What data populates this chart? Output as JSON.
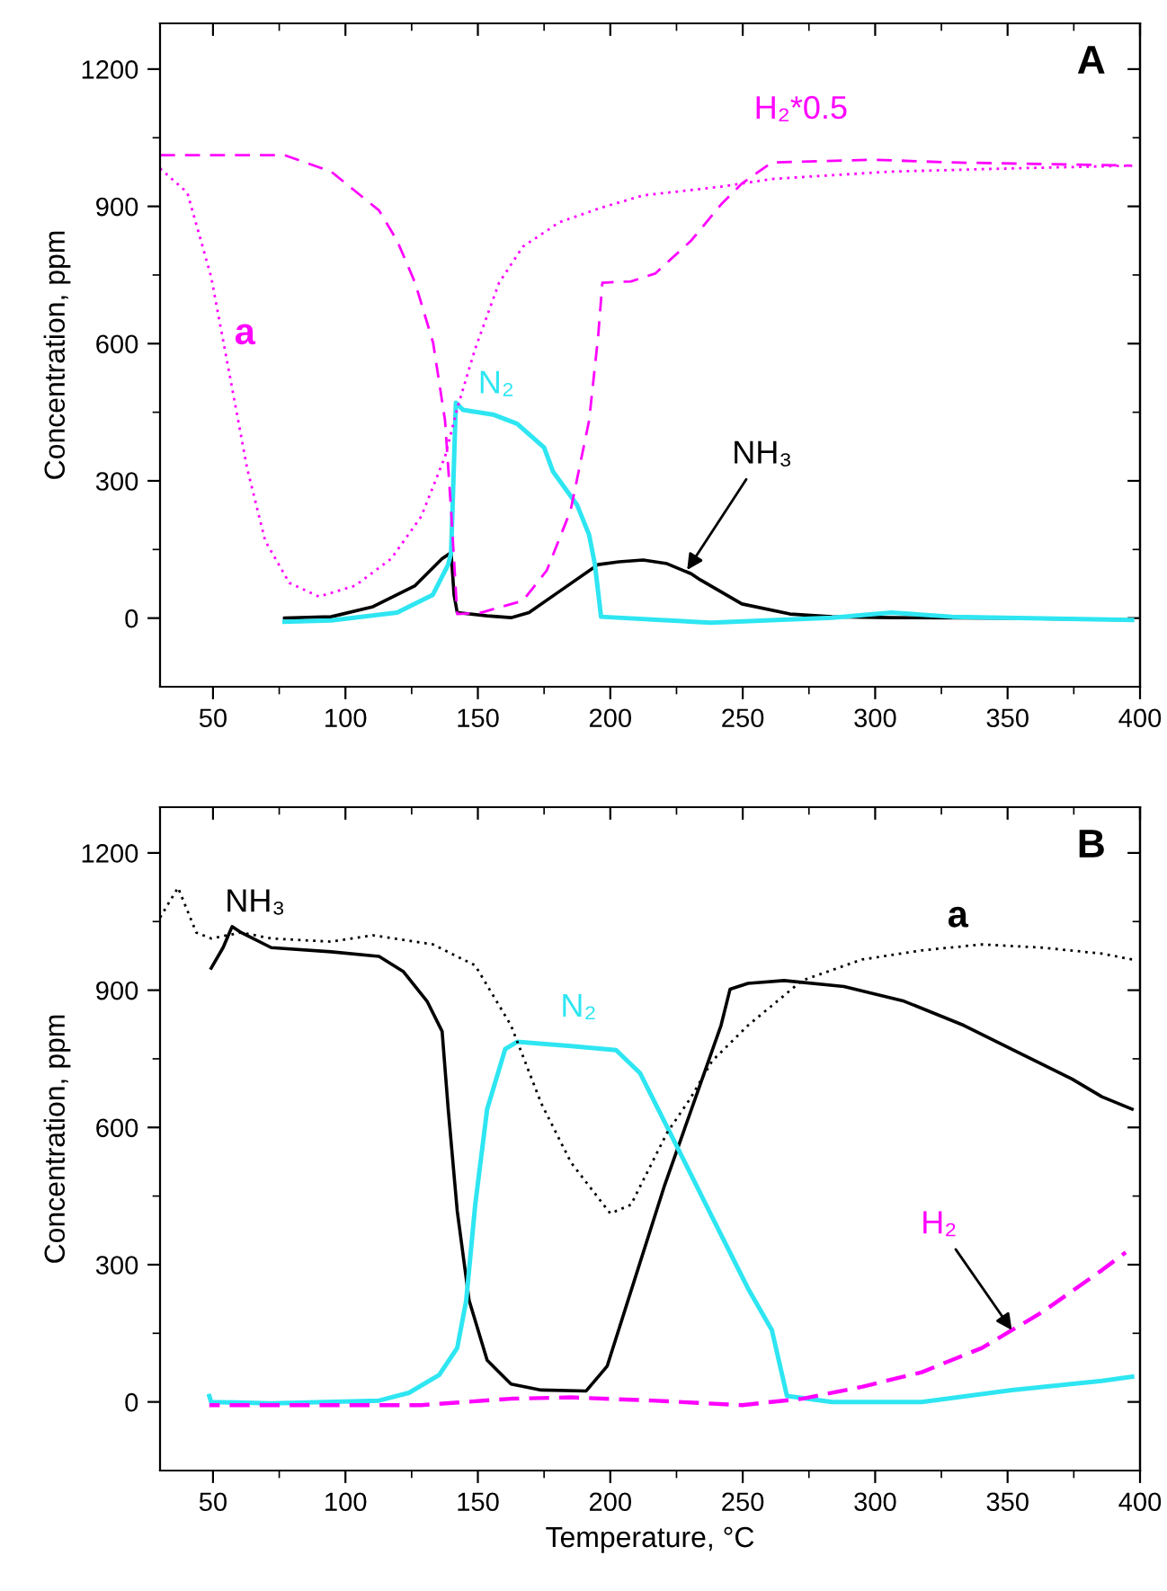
{
  "chart_data": [
    {
      "type": "line",
      "ylabel": "Concentration, ppm",
      "xlim": [
        30,
        400
      ],
      "ylim": [
        -150,
        1300
      ],
      "xticks": [
        50,
        {
          "value": 75,
          "label": null
        },
        100,
        {
          "value": 125,
          "label": null
        },
        150,
        {
          "value": 175,
          "label": null
        },
        200,
        {
          "value": 225,
          "label": null
        },
        250,
        {
          "value": 275,
          "label": null
        },
        300,
        {
          "value": 325,
          "label": null
        },
        350,
        {
          "value": 375,
          "label": null
        },
        400
      ],
      "yticks": [
        0,
        {
          "value": 150,
          "label": null
        },
        300,
        {
          "value": 450,
          "label": null
        },
        600,
        {
          "value": 750,
          "label": null
        },
        900,
        {
          "value": 1050,
          "label": null
        },
        1200
      ],
      "grid": false,
      "legend": false,
      "marker": "none",
      "annotations": [
        "A",
        "H₂*0.5",
        "a",
        "N₂",
        {
          "text": "NH₃",
          "x": 229,
          "y": 105
        }
      ],
      "series": [
        {
          "color": "#000000",
          "line_style": "solid",
          "x": [
            77,
            94.6,
            110.4,
            126.3,
            136.5,
            139.9,
            141,
            142.2,
            153.5,
            162.5,
            169.3,
            180.7,
            195.4,
            203.3,
            212.4,
            221.4,
            230.5,
            233.9,
            249.7,
            267.8,
            283.7,
            306,
            351.6,
            396.9
          ],
          "values": [
            0,
            3,
            25,
            71,
            130,
            143,
            51,
            12,
            5,
            1,
            12,
            58,
            117,
            123,
            127,
            119,
            97,
            84,
            31,
            9,
            3,
            1,
            0,
            -4
          ]
        },
        {
          "color": "#2ee6f2",
          "line_style": "solid",
          "x": [
            77,
            94.6,
            119.5,
            133,
            138.8,
            139.9,
            141.7,
            144.4,
            155.7,
            164.8,
            175,
            178.4,
            187.4,
            192,
            194.2,
            196.5,
            219,
            238,
            283.7,
            306,
            329,
            397
          ],
          "values": [
            -8,
            -5,
            12,
            51,
            117,
            143,
            471,
            455,
            445,
            425,
            373,
            320,
            248,
            182,
            117,
            3,
            -4,
            -10,
            1,
            12,
            3,
            -4
          ]
        },
        {
          "color": "#ff00ff",
          "line_style": "dashed",
          "x": [
            30,
            77,
            94.6,
            112.7,
            119.5,
            126.3,
            133.1,
            137.6,
            139.9,
            142.2,
            151.2,
            167,
            176,
            185,
            192,
            195.4,
            197,
            207.8,
            216.9,
            230.5,
            241.8,
            249.7,
            261,
            299.5,
            329,
            397
          ],
          "values": [
            1012,
            1012,
            976,
            891,
            825,
            733,
            602,
            432,
            235,
            9,
            12,
            38,
            104,
            235,
            432,
            615,
            733,
            736,
            753,
            825,
            904,
            950,
            996,
            1002,
            996,
            989
          ]
        },
        {
          "color": "#ff00ff",
          "line_style": "dotted",
          "x": [
            30,
            40.3,
            49.3,
            56.1,
            62.9,
            69.7,
            78.8,
            90,
            103.7,
            117.3,
            128.6,
            137.6,
            142.2,
            149,
            158,
            167,
            180.7,
            196.5,
            212.4,
            241.8,
            261,
            306,
            351.6,
            397
          ],
          "values": [
            983,
            930,
            746,
            537,
            327,
            169,
            77,
            47,
            71,
            130,
            222,
            353,
            458,
            589,
            733,
            812,
            865,
            897,
            924,
            943,
            960,
            976,
            983,
            989
          ]
        }
      ]
    },
    {
      "type": "line",
      "xlabel": "Temperature, °C",
      "ylabel": "Concentration, ppm",
      "xlim": [
        30,
        400
      ],
      "ylim": [
        -150,
        1300
      ],
      "xticks": [
        50,
        {
          "value": 75,
          "label": null
        },
        100,
        {
          "value": 125,
          "label": null
        },
        150,
        {
          "value": 175,
          "label": null
        },
        200,
        {
          "value": 225,
          "label": null
        },
        250,
        {
          "value": 275,
          "label": null
        },
        300,
        {
          "value": 325,
          "label": null
        },
        350,
        {
          "value": 375,
          "label": null
        },
        400
      ],
      "yticks": [
        0,
        {
          "value": 150,
          "label": null
        },
        300,
        {
          "value": 450,
          "label": null
        },
        600,
        {
          "value": 750,
          "label": null
        },
        900,
        {
          "value": 1050,
          "label": null
        },
        1200
      ],
      "grid": false,
      "legend": false,
      "marker": "none",
      "annotations": [
        "B",
        "NH₃",
        "N₂",
        "a",
        {
          "text": "H₂",
          "x": 351.6,
          "y": 157
        }
      ],
      "series": [
        {
          "color": "#000000",
          "line_style": "solid",
          "x": [
            49.3,
            53.8,
            57.2,
            60.6,
            72,
            94.6,
            112.7,
            121.8,
            130.8,
            136.5,
            138.8,
            142.2,
            146.7,
            153.5,
            162.5,
            173.9,
            190.9,
            198.8,
            206.7,
            220.3,
            233.9,
            241.8,
            245.2,
            252,
            265.6,
            288.2,
            310.9,
            333.5,
            356.1,
            374.3,
            385.6,
            397
          ],
          "values": [
            948,
            993,
            1039,
            1026,
            993,
            984,
            974,
            941,
            876,
            810,
            640,
            418,
            222,
            91,
            39,
            26,
            24,
            78,
            222,
            470,
            693,
            823,
            902,
            915,
            921,
            908,
            876,
            823,
            758,
            706,
            667,
            640
          ]
        },
        {
          "color": "#2ee6f2",
          "line_style": "solid",
          "x": [
            48.6,
            49.3,
            72,
            112.7,
            124,
            135.4,
            142.2,
            145.6,
            149,
            153.5,
            160.3,
            164.8,
            185.2,
            202.2,
            211.2,
            227.1,
            238.4,
            252,
            261,
            266.7,
            283.7,
            317.6,
            351.6,
            385.6,
            397
          ],
          "values": [
            13,
            0,
            -3,
            3,
            20,
            59,
            118,
            222,
            431,
            640,
            771,
            787,
            778,
            769,
            719,
            536,
            405,
            248,
            157,
            13,
            0,
            0,
            26,
            46,
            55
          ]
        },
        {
          "color": "#ff00ff",
          "line_style": "dashed",
          "x": [
            48.6,
            94.6,
            128.6,
            162.5,
            185.2,
            215.7,
            249.7,
            272.4,
            295,
            317.6,
            340.3,
            363,
            385.6,
            394.6
          ],
          "values": [
            -7,
            -7,
            -7,
            7,
            10,
            3,
            -7,
            7,
            33,
            65,
            118,
            196,
            288,
            327
          ]
        },
        {
          "color": "#000000",
          "line_style": "dotted",
          "x": [
            30,
            36.8,
            43.7,
            49.3,
            60.6,
            72,
            94.6,
            110.4,
            133.1,
            149,
            162.5,
            173.9,
            185.2,
            200,
            207.8,
            221.4,
            230.5,
            238.4,
            252,
            272.4,
            295,
            317.6,
            340.3,
            363,
            385.6,
            397
          ],
          "values": [
            1059,
            1124,
            1026,
            1013,
            1026,
            1013,
            1006,
            1020,
            1000,
            954,
            823,
            653,
            523,
            412,
            431,
            588,
            666,
            745,
            823,
            921,
            967,
            987,
            1000,
            993,
            980,
            967
          ]
        }
      ]
    }
  ]
}
